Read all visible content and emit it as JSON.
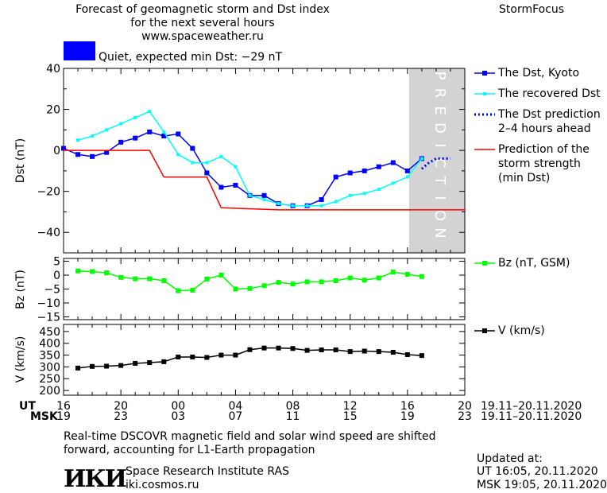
{
  "header": {
    "title_line1": "Forecast of geomagnetic storm and Dst index",
    "title_line2": "for the next several hours",
    "url": "www.spaceweather.ru",
    "brand": "StormFocus"
  },
  "status": {
    "color": "#0000ff",
    "text": "Quiet, expected min Dst: −29 nT"
  },
  "time_axis": {
    "ut_label": "UT",
    "msk_label": "MSK",
    "ut_ticks": [
      "16",
      "20",
      "00",
      "04",
      "08",
      "12",
      "16",
      "20"
    ],
    "msk_ticks": [
      "19",
      "23",
      "03",
      "07",
      "11",
      "15",
      "19",
      "23"
    ],
    "ut_range": "19.11–20.11.2020",
    "msk_range": "19.11–20.11.2020"
  },
  "footer": {
    "note_line1": "Real-time DSCOVR magnetic field and solar wind speed are shifted",
    "note_line2": "forward, accounting for L1-Earth propagation",
    "logo": "ИКИ",
    "institute": "Space Research Institute RAS",
    "site": "iki.cosmos.ru",
    "updated_label": "Updated at:",
    "updated_ut": "UT   16:05, 20.11.2020",
    "updated_msk": "MSK 19:05, 20.11.2020"
  },
  "chart_data": [
    {
      "type": "line",
      "title": "Forecast of geomagnetic storm and Dst index",
      "ylabel": "Dst (nT)",
      "xlim": [
        16,
        44
      ],
      "ylim": [
        -50,
        40
      ],
      "yticks": [
        -40,
        -20,
        0,
        20,
        40
      ],
      "prediction_region": {
        "x": [
          41,
          44
        ],
        "label": "PREDICTION",
        "color": "#d3d3d3"
      },
      "series": [
        {
          "name": "The Dst, Kyoto",
          "color": "#0000ff",
          "marker": "square",
          "x": [
            16,
            17,
            18,
            19,
            20,
            21,
            22,
            23,
            24,
            25,
            26,
            27,
            28,
            29,
            30,
            31,
            32,
            33,
            34,
            35,
            36,
            37,
            38,
            39,
            40,
            41
          ],
          "y": [
            1,
            -2,
            -3,
            -1,
            4,
            6,
            9,
            7,
            8,
            1,
            -11,
            -18,
            -17,
            -22,
            -22,
            -26,
            -27,
            -27,
            -24,
            -13,
            -11,
            -10,
            -8,
            -6,
            -10,
            -4
          ]
        },
        {
          "name": "The recovered Dst",
          "color": "#00ffff",
          "marker": "square-small",
          "x": [
            17,
            18,
            19,
            20,
            21,
            22,
            23,
            24,
            25,
            26,
            27,
            28,
            29,
            30,
            31,
            32,
            33,
            34,
            35,
            36,
            37,
            38,
            39,
            40,
            41
          ],
          "y": [
            5,
            7,
            10,
            13,
            16,
            19,
            9,
            -2,
            -6,
            -6,
            -3,
            -8,
            -22,
            -24,
            -26,
            -27,
            -27,
            -27,
            -25,
            -22,
            -21,
            -19,
            -16,
            -13,
            -4
          ]
        },
        {
          "name": "The Dst prediction",
          "name_line2": "2–4 hours ahead",
          "color": "#0000ff",
          "style": "dotted",
          "x": [
            41,
            41.5,
            42,
            42.5,
            43
          ],
          "y": [
            -9,
            -6,
            -4,
            -4,
            -4
          ]
        },
        {
          "name": "Prediction of the",
          "name_line2": "storm strength",
          "name_line3": "(min Dst)",
          "color": "#ff0000",
          "style": "step",
          "x": [
            16,
            22,
            23,
            26,
            27,
            31,
            44
          ],
          "y": [
            0,
            0,
            -13,
            -13,
            -28,
            -29,
            -29
          ]
        }
      ]
    },
    {
      "type": "line",
      "ylabel": "Bz (nT)",
      "ylim": [
        -16,
        6
      ],
      "yticks": [
        -15,
        -10,
        -5,
        0,
        5
      ],
      "series": [
        {
          "name": "Bz (nT, GSM)",
          "color": "#00ff00",
          "x": [
            17,
            18,
            19,
            20,
            21,
            22,
            23,
            24,
            25,
            26,
            27,
            28,
            29,
            30,
            31,
            32,
            33,
            34,
            35,
            36,
            37,
            38,
            39,
            40,
            41
          ],
          "y": [
            1.5,
            1.3,
            0.8,
            -0.8,
            -1.3,
            -1.3,
            -2.0,
            -5.6,
            -5.4,
            -1.4,
            0.0,
            -5.0,
            -4.8,
            -3.8,
            -2.6,
            -3.2,
            -2.4,
            -2.4,
            -2.0,
            -1.0,
            -1.8,
            -1.0,
            1.1,
            0.3,
            -0.5
          ]
        }
      ]
    },
    {
      "type": "line",
      "ylabel": "V (km/s)",
      "ylim": [
        180,
        480
      ],
      "yticks": [
        200,
        250,
        300,
        350,
        400,
        450
      ],
      "series": [
        {
          "name": "V (km/s)",
          "color": "#000000",
          "x": [
            17,
            18,
            19,
            20,
            21,
            22,
            23,
            24,
            25,
            26,
            27,
            28,
            29,
            30,
            31,
            32,
            33,
            34,
            35,
            36,
            37,
            38,
            39,
            40,
            41
          ],
          "y": [
            295,
            302,
            303,
            306,
            315,
            318,
            322,
            342,
            342,
            340,
            350,
            350,
            373,
            380,
            380,
            378,
            370,
            372,
            372,
            365,
            367,
            365,
            362,
            352,
            348
          ]
        }
      ]
    }
  ]
}
